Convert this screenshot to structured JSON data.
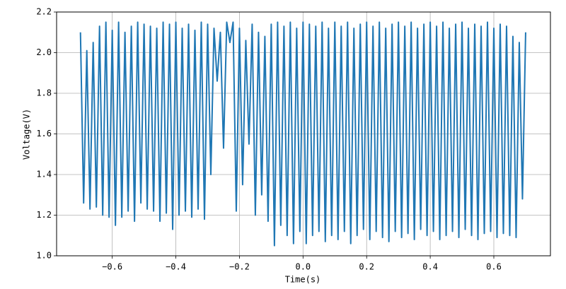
{
  "chart_data": {
    "type": "line",
    "xlabel": "Time(s)",
    "ylabel": "Voltage(V)",
    "color": "#1f77b4",
    "grid": true,
    "xlim": [
      -0.775,
      0.778
    ],
    "ylim": [
      1.0,
      2.2
    ],
    "xticks": [
      {
        "value": -0.6,
        "label": "−0.6"
      },
      {
        "value": -0.4,
        "label": "−0.4"
      },
      {
        "value": -0.2,
        "label": "−0.2"
      },
      {
        "value": 0.0,
        "label": "0.0"
      },
      0.2,
      0.4,
      0.6
    ],
    "yticks": [
      {
        "value": 1.0,
        "label": "1.0"
      },
      1.2,
      1.4,
      1.6,
      1.8,
      {
        "value": 2.0,
        "label": "2.0"
      },
      2.2
    ],
    "x": [
      -0.7,
      -0.69,
      -0.68,
      -0.67,
      -0.66,
      -0.65,
      -0.64,
      -0.63,
      -0.62,
      -0.61,
      -0.6,
      -0.59,
      -0.58,
      -0.57,
      -0.56,
      -0.55,
      -0.54,
      -0.53,
      -0.52,
      -0.51,
      -0.5,
      -0.49,
      -0.48,
      -0.47,
      -0.46,
      -0.45,
      -0.44,
      -0.43,
      -0.42,
      -0.41,
      -0.4,
      -0.39,
      -0.38,
      -0.37,
      -0.36,
      -0.35,
      -0.34,
      -0.33,
      -0.32,
      -0.31,
      -0.3,
      -0.29,
      -0.28,
      -0.27,
      -0.26,
      -0.25,
      -0.24,
      -0.23,
      -0.22,
      -0.21,
      -0.2,
      -0.19,
      -0.18,
      -0.17,
      -0.16,
      -0.15,
      -0.14,
      -0.13,
      -0.12,
      -0.11,
      -0.1,
      -0.09,
      -0.08,
      -0.07,
      -0.06,
      -0.05,
      -0.04,
      -0.03,
      -0.02,
      -0.01,
      0.0,
      0.01,
      0.02,
      0.03,
      0.04,
      0.05,
      0.06,
      0.07,
      0.08,
      0.09,
      0.1,
      0.11,
      0.12,
      0.13,
      0.14,
      0.15,
      0.16,
      0.17,
      0.18,
      0.19,
      0.2,
      0.21,
      0.22,
      0.23,
      0.24,
      0.25,
      0.26,
      0.27,
      0.28,
      0.29,
      0.3,
      0.31,
      0.32,
      0.33,
      0.34,
      0.35,
      0.36,
      0.37,
      0.38,
      0.39,
      0.4,
      0.41,
      0.42,
      0.43,
      0.44,
      0.45,
      0.46,
      0.47,
      0.48,
      0.49,
      0.5,
      0.51,
      0.52,
      0.53,
      0.54,
      0.55,
      0.56,
      0.57,
      0.58,
      0.59,
      0.6,
      0.61,
      0.62,
      0.63,
      0.64,
      0.65,
      0.66,
      0.67,
      0.68,
      0.69,
      0.7
    ],
    "values": [
      2.1,
      1.26,
      2.01,
      1.23,
      2.05,
      1.24,
      2.13,
      1.2,
      2.15,
      1.19,
      2.11,
      1.15,
      2.15,
      1.19,
      2.1,
      1.22,
      2.13,
      1.17,
      2.15,
      1.26,
      2.14,
      1.23,
      2.13,
      1.22,
      2.12,
      1.17,
      2.15,
      1.21,
      2.14,
      1.13,
      2.15,
      1.2,
      2.12,
      1.22,
      2.14,
      1.19,
      2.11,
      1.23,
      2.15,
      1.18,
      2.14,
      1.4,
      2.12,
      1.86,
      2.1,
      1.53,
      2.15,
      2.05,
      2.15,
      1.22,
      2.12,
      1.35,
      2.06,
      1.55,
      2.14,
      1.2,
      2.1,
      1.3,
      2.08,
      1.17,
      2.14,
      1.05,
      2.15,
      1.15,
      2.13,
      1.1,
      2.15,
      1.06,
      2.12,
      1.12,
      2.15,
      1.06,
      2.14,
      1.1,
      2.13,
      1.12,
      2.15,
      1.07,
      2.12,
      1.1,
      2.15,
      1.08,
      2.13,
      1.12,
      2.15,
      1.06,
      2.12,
      1.1,
      2.14,
      1.13,
      2.15,
      1.08,
      2.13,
      1.12,
      2.15,
      1.09,
      2.12,
      1.07,
      2.14,
      1.12,
      2.15,
      1.09,
      2.13,
      1.11,
      2.15,
      1.08,
      2.12,
      1.13,
      2.14,
      1.1,
      2.15,
      1.12,
      2.13,
      1.08,
      2.15,
      1.1,
      2.12,
      1.12,
      2.14,
      1.09,
      2.15,
      1.13,
      2.12,
      1.1,
      2.14,
      1.08,
      2.13,
      1.11,
      2.15,
      1.12,
      2.12,
      1.09,
      2.14,
      1.11,
      2.13,
      1.1,
      2.08,
      1.09,
      2.05,
      1.28,
      2.1
    ]
  }
}
